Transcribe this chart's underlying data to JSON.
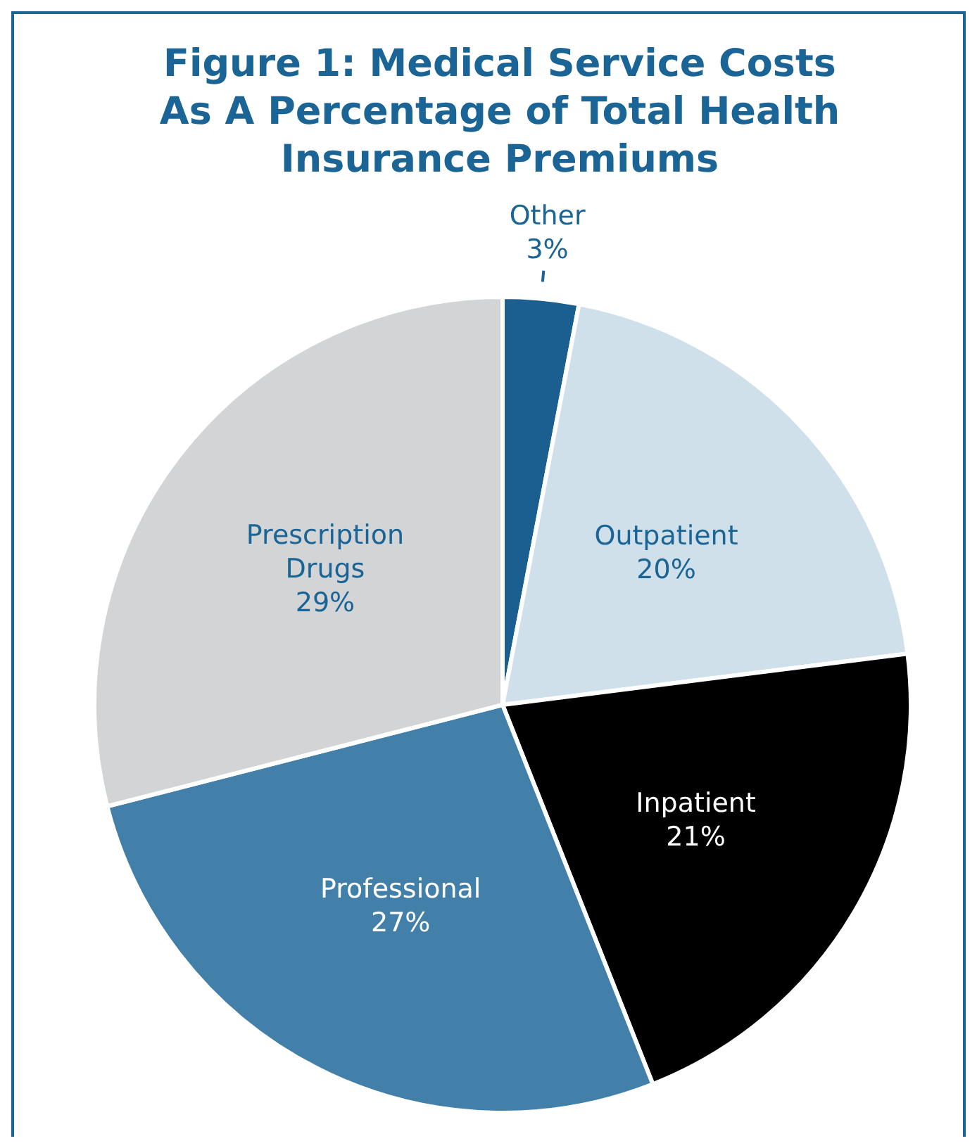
{
  "chart_data": {
    "type": "pie",
    "title": "Figure 1: Medical Service Costs As A Percentage of Total Health Insurance Premiums",
    "categories": [
      "Other",
      "Outpatient",
      "Inpatient",
      "Professional",
      "Prescription Drugs"
    ],
    "values": [
      3,
      20,
      21,
      27,
      29
    ],
    "colors": [
      "#1a5f8f",
      "#d0e0ea",
      "#000000",
      "#4280aa",
      "#d3d4d5"
    ],
    "value_labels": [
      "3%",
      "20%",
      "21%",
      "27%",
      "29%"
    ]
  }
}
